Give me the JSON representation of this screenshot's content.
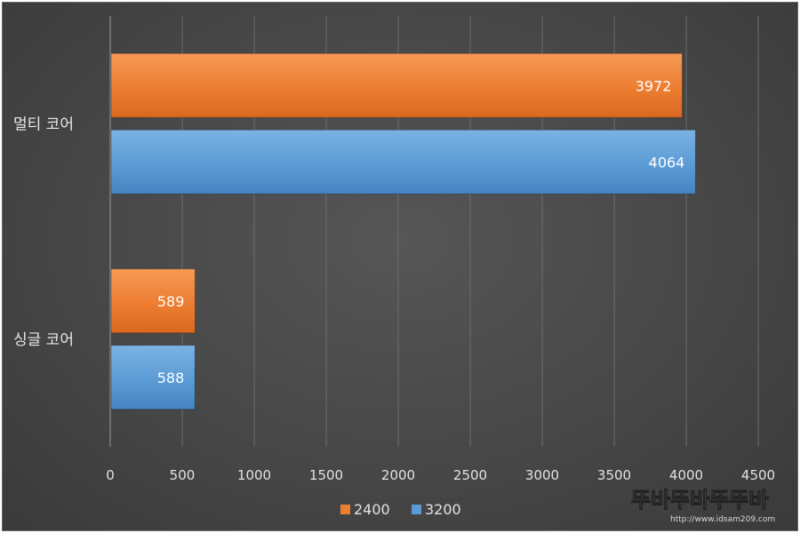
{
  "chart_data": {
    "type": "bar",
    "orientation": "horizontal",
    "categories": [
      "멀티 코어",
      "싱글 코어"
    ],
    "series": [
      {
        "name": "2400",
        "values": [
          3972,
          589
        ],
        "color": "#ED7D31"
      },
      {
        "name": "3200",
        "values": [
          4064,
          588
        ],
        "color": "#5B9BD5"
      }
    ],
    "xlim": [
      0,
      4500
    ],
    "x_ticks": [
      "0",
      "500",
      "1000",
      "1500",
      "2000",
      "2500",
      "3000",
      "3500",
      "4000",
      "4500"
    ],
    "grid": true,
    "legend": "bottom",
    "data_labels": true,
    "background": "#4a4a4a"
  },
  "watermark": {
    "main": "뚜바뚜바뚜뚜바",
    "sub": "http://www.idsam209.com"
  }
}
